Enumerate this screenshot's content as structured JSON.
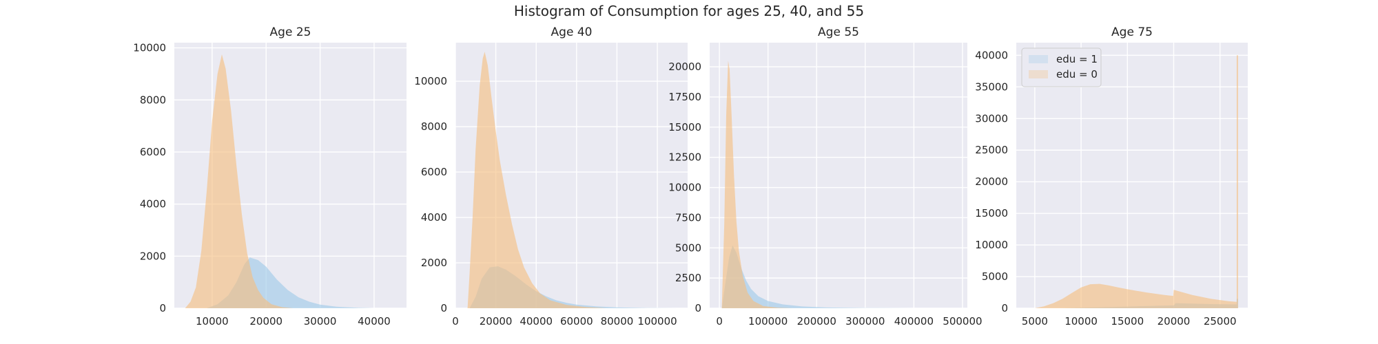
{
  "figure": {
    "title": "Histogram of Consumption for ages 25, 40, and 55"
  },
  "legend": {
    "placement": "upper-left of last panel",
    "entries": [
      {
        "label": "edu = 1",
        "color": "#9ecae9"
      },
      {
        "label": "edu = 0",
        "color": "#f5bf7f"
      }
    ]
  },
  "colors": {
    "background": "#eaeaf2",
    "grid": "#ffffff",
    "edu1": "#9ecae9",
    "edu0": "#f5bf7f"
  },
  "chart_data": [
    {
      "type": "histogram",
      "title": "Age 25",
      "xlim": [
        3000,
        46000
      ],
      "ylim": [
        0,
        10200
      ],
      "xticks": [
        10000,
        20000,
        30000,
        40000
      ],
      "yticks": [
        0,
        2000,
        4000,
        6000,
        8000,
        10000
      ],
      "grid": true,
      "series": [
        {
          "name": "edu = 1",
          "points": [
            [
              9000,
              0
            ],
            [
              11000,
              150
            ],
            [
              13000,
              500
            ],
            [
              14500,
              1000
            ],
            [
              16000,
              1700
            ],
            [
              17000,
              1950
            ],
            [
              18500,
              1850
            ],
            [
              20000,
              1600
            ],
            [
              22000,
              1100
            ],
            [
              24000,
              700
            ],
            [
              26000,
              420
            ],
            [
              28000,
              250
            ],
            [
              30000,
              140
            ],
            [
              33000,
              60
            ],
            [
              37000,
              15
            ],
            [
              40000,
              0
            ]
          ]
        },
        {
          "name": "edu = 0",
          "points": [
            [
              5000,
              0
            ],
            [
              6000,
              250
            ],
            [
              7000,
              800
            ],
            [
              8000,
              2200
            ],
            [
              9000,
              4500
            ],
            [
              10000,
              7200
            ],
            [
              11000,
              9000
            ],
            [
              11800,
              9750
            ],
            [
              12500,
              9200
            ],
            [
              13500,
              7600
            ],
            [
              14500,
              5500
            ],
            [
              15500,
              3600
            ],
            [
              16500,
              2100
            ],
            [
              17500,
              1200
            ],
            [
              18500,
              700
            ],
            [
              19500,
              400
            ],
            [
              21000,
              150
            ],
            [
              23000,
              40
            ],
            [
              25000,
              0
            ]
          ]
        }
      ]
    },
    {
      "type": "histogram",
      "title": "Age 40",
      "xlim": [
        0,
        115000
      ],
      "ylim": [
        0,
        11700
      ],
      "xticks": [
        0,
        20000,
        40000,
        60000,
        80000,
        100000
      ],
      "yticks": [
        0,
        2000,
        4000,
        6000,
        8000,
        10000
      ],
      "grid": true,
      "series": [
        {
          "name": "edu = 1",
          "points": [
            [
              7000,
              0
            ],
            [
              10000,
              500
            ],
            [
              13000,
              1300
            ],
            [
              17000,
              1800
            ],
            [
              21000,
              1850
            ],
            [
              25000,
              1700
            ],
            [
              30000,
              1400
            ],
            [
              35000,
              1050
            ],
            [
              40000,
              750
            ],
            [
              45000,
              520
            ],
            [
              50000,
              350
            ],
            [
              55000,
              240
            ],
            [
              60000,
              160
            ],
            [
              70000,
              80
            ],
            [
              80000,
              35
            ],
            [
              95000,
              10
            ],
            [
              110000,
              0
            ]
          ]
        },
        {
          "name": "edu = 0",
          "points": [
            [
              6000,
              0
            ],
            [
              7000,
              1500
            ],
            [
              8500,
              4000
            ],
            [
              10000,
              7000
            ],
            [
              12000,
              9800
            ],
            [
              13500,
              11000
            ],
            [
              14500,
              11300
            ],
            [
              16000,
              10700
            ],
            [
              18000,
              9200
            ],
            [
              20000,
              7800
            ],
            [
              22000,
              6500
            ],
            [
              25000,
              5000
            ],
            [
              28000,
              3700
            ],
            [
              31000,
              2600
            ],
            [
              34000,
              1800
            ],
            [
              38000,
              1100
            ],
            [
              42000,
              650
            ],
            [
              47000,
              350
            ],
            [
              55000,
              150
            ],
            [
              65000,
              50
            ],
            [
              75000,
              0
            ]
          ]
        }
      ]
    },
    {
      "type": "histogram",
      "title": "Age 55",
      "xlim": [
        -20000,
        510000
      ],
      "ylim": [
        0,
        22000
      ],
      "xticks": [
        0,
        100000,
        200000,
        300000,
        400000,
        500000
      ],
      "yticks": [
        0,
        2500,
        5000,
        7500,
        10000,
        12500,
        15000,
        17500,
        20000
      ],
      "grid": true,
      "series": [
        {
          "name": "edu = 1",
          "points": [
            [
              5000,
              0
            ],
            [
              12000,
              2000
            ],
            [
              20000,
              4200
            ],
            [
              27000,
              5200
            ],
            [
              35000,
              4600
            ],
            [
              45000,
              3300
            ],
            [
              55000,
              2300
            ],
            [
              65000,
              1600
            ],
            [
              80000,
              1000
            ],
            [
              100000,
              600
            ],
            [
              130000,
              320
            ],
            [
              170000,
              150
            ],
            [
              220000,
              60
            ],
            [
              300000,
              15
            ],
            [
              400000,
              0
            ]
          ]
        },
        {
          "name": "edu = 0",
          "points": [
            [
              5000,
              0
            ],
            [
              10000,
              7000
            ],
            [
              14000,
              16000
            ],
            [
              18000,
              20500
            ],
            [
              21000,
              19800
            ],
            [
              25000,
              16000
            ],
            [
              30000,
              11000
            ],
            [
              35000,
              7200
            ],
            [
              40000,
              4800
            ],
            [
              48000,
              2700
            ],
            [
              58000,
              1300
            ],
            [
              70000,
              600
            ],
            [
              90000,
              180
            ],
            [
              120000,
              40
            ],
            [
              150000,
              0
            ]
          ]
        }
      ]
    },
    {
      "type": "histogram",
      "title": "Age 75",
      "xlim": [
        3000,
        28000
      ],
      "ylim": [
        0,
        42000
      ],
      "xticks": [
        5000,
        10000,
        15000,
        20000,
        25000
      ],
      "yticks": [
        0,
        5000,
        10000,
        15000,
        20000,
        25000,
        30000,
        35000,
        40000
      ],
      "grid": true,
      "series": [
        {
          "name": "edu = 1",
          "points": [
            [
              8000,
              0
            ],
            [
              12000,
              150
            ],
            [
              16000,
              300
            ],
            [
              20000,
              450
            ],
            [
              20200,
              800
            ],
            [
              24000,
              650
            ],
            [
              26800,
              600
            ],
            [
              26800,
              1500
            ],
            [
              26950,
              1500
            ],
            [
              26950,
              0
            ]
          ]
        },
        {
          "name": "edu = 0",
          "points": [
            [
              5000,
              0
            ],
            [
              6000,
              300
            ],
            [
              7000,
              800
            ],
            [
              8000,
              1500
            ],
            [
              9000,
              2400
            ],
            [
              10000,
              3300
            ],
            [
              11000,
              3800
            ],
            [
              12000,
              3850
            ],
            [
              13000,
              3600
            ],
            [
              14000,
              3300
            ],
            [
              15000,
              3000
            ],
            [
              16000,
              2750
            ],
            [
              17000,
              2500
            ],
            [
              18000,
              2300
            ],
            [
              19000,
              2100
            ],
            [
              19950,
              1950
            ],
            [
              20000,
              2900
            ],
            [
              21000,
              2500
            ],
            [
              22000,
              2100
            ],
            [
              23000,
              1800
            ],
            [
              24000,
              1500
            ],
            [
              25000,
              1300
            ],
            [
              26000,
              1100
            ],
            [
              26800,
              1000
            ],
            [
              26800,
              40000
            ],
            [
              26950,
              40000
            ],
            [
              26950,
              0
            ]
          ]
        }
      ]
    }
  ]
}
